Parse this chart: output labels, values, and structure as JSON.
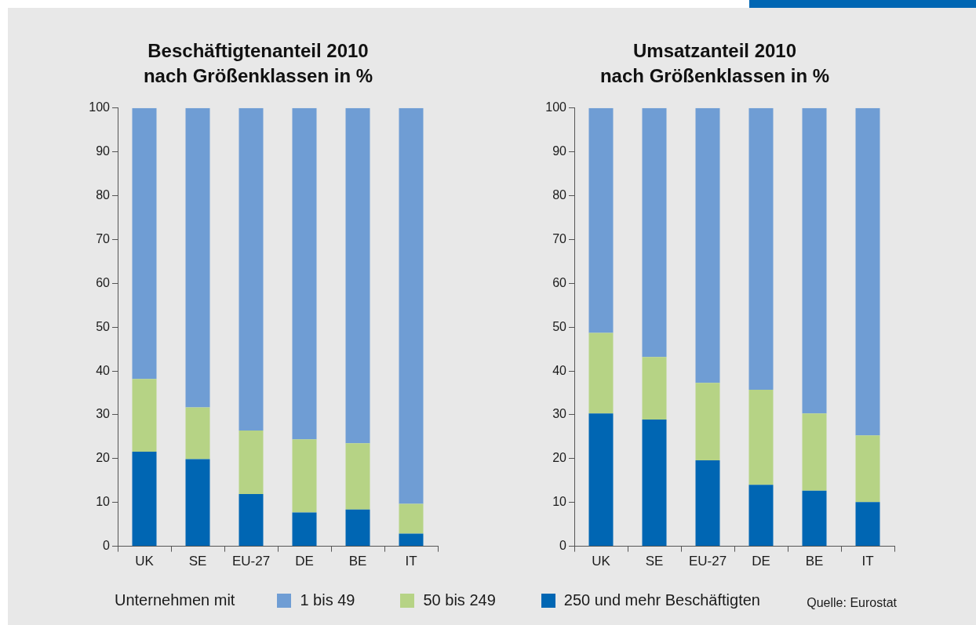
{
  "chart_data": [
    {
      "type": "bar",
      "title": "Beschäftigtenanteil 2010\nnach Größenklassen in %",
      "categories": [
        "UK",
        "SE",
        "EU-27",
        "DE",
        "BE",
        "IT"
      ],
      "stacked": true,
      "series": [
        {
          "name": "250 und mehr Beschäftigten",
          "color": "#0066b3",
          "values": [
            21.6,
            19.9,
            11.9,
            7.7,
            8.4,
            2.9
          ]
        },
        {
          "name": "50 bis 249",
          "color": "#b6d385",
          "values": [
            16.6,
            11.8,
            14.5,
            16.7,
            15.1,
            6.8
          ]
        },
        {
          "name": "1 bis 49",
          "color": "#6f9dd4",
          "values": [
            61.8,
            68.3,
            73.6,
            75.6,
            76.5,
            90.3
          ]
        }
      ],
      "ylim": [
        0,
        100
      ],
      "yticks": [
        0,
        10,
        20,
        30,
        40,
        50,
        60,
        70,
        80,
        90,
        100
      ],
      "legend": "bottom",
      "legend_title": "Unternehmen mit"
    },
    {
      "type": "bar",
      "title": "Umsatzanteil 2010\nnach Größenklassen in %",
      "categories": [
        "UK",
        "SE",
        "EU-27",
        "DE",
        "BE",
        "IT"
      ],
      "stacked": true,
      "series": [
        {
          "color": "#0066b3",
          "values": [
            30.3,
            28.9,
            19.6,
            14.0,
            12.7,
            10.1
          ]
        },
        {
          "color": "#b6d385",
          "values": [
            18.4,
            14.3,
            17.7,
            21.7,
            17.6,
            15.2
          ]
        },
        {
          "color": "#6f9dd4",
          "values": [
            51.3,
            56.8,
            62.7,
            64.3,
            69.7,
            74.7
          ]
        }
      ],
      "ylim": [
        0,
        100
      ],
      "yticks": [
        0,
        10,
        20,
        30,
        40,
        50,
        60,
        70,
        80,
        90,
        100
      ],
      "annotations": [
        "Quelle: Eurostat"
      ]
    }
  ]
}
